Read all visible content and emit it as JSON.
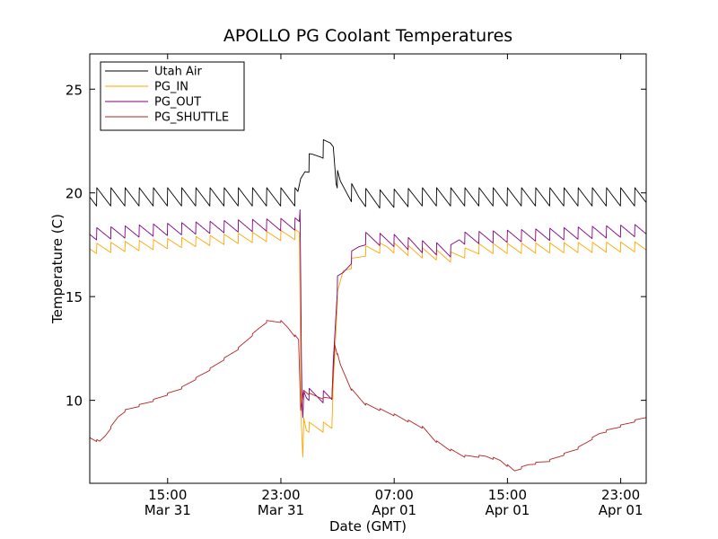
{
  "chart_data": {
    "type": "line",
    "title": "APOLLO PG Coolant Temperatures",
    "xlabel": "Date (GMT)",
    "ylabel": "Temperature (C)",
    "xlim": [
      9.5,
      48.8
    ],
    "ylim": [
      6.0,
      26.7
    ],
    "yticks": [
      10,
      15,
      20,
      25
    ],
    "xticks": [
      {
        "x": 15,
        "line1": "15:00",
        "line2": "Mar 31"
      },
      {
        "x": 23,
        "line1": "23:00",
        "line2": "Mar 31"
      },
      {
        "x": 31,
        "line1": "07:00",
        "line2": "Apr 01"
      },
      {
        "x": 39,
        "line1": "15:00",
        "line2": "Apr 01"
      },
      {
        "x": 47,
        "line1": "23:00",
        "line2": "Apr 01"
      }
    ],
    "x_unit": "hours since 2013-03-31 00:00 GMT (axis shown as Date)",
    "legend_position": "upper-left",
    "series": [
      {
        "name": "Utah Air",
        "color": "#000000",
        "oscillation": {
          "period": 1.0,
          "amplitude": 0.45
        },
        "points": [
          [
            9.5,
            19.8
          ],
          [
            24.2,
            19.8
          ],
          [
            24.4,
            20.6
          ],
          [
            24.7,
            21.2
          ],
          [
            25.2,
            21.6
          ],
          [
            25.8,
            22.0
          ],
          [
            26.5,
            22.4
          ],
          [
            26.7,
            22.4
          ],
          [
            26.9,
            20.8
          ],
          [
            27.2,
            20.3
          ],
          [
            28.0,
            20.0
          ],
          [
            28.5,
            19.8
          ],
          [
            30.0,
            19.7
          ],
          [
            33.0,
            19.8
          ],
          [
            48.8,
            19.8
          ]
        ]
      },
      {
        "name": "PG_IN",
        "color": "#ffa500",
        "oscillation": {
          "period": 1.0,
          "amplitude": 0.25
        },
        "points": [
          [
            9.5,
            17.3
          ],
          [
            14.0,
            17.5
          ],
          [
            20.0,
            17.8
          ],
          [
            24.3,
            18.0
          ],
          [
            24.35,
            14.8
          ],
          [
            24.4,
            11.4
          ],
          [
            24.45,
            8.8
          ],
          [
            24.5,
            8.0
          ],
          [
            24.55,
            7.3
          ],
          [
            24.62,
            9.2
          ],
          [
            24.8,
            8.7
          ],
          [
            26.6,
            8.7
          ],
          [
            26.7,
            11.0
          ],
          [
            27.0,
            15.0
          ],
          [
            27.4,
            16.2
          ],
          [
            28.0,
            16.6
          ],
          [
            29.0,
            17.2
          ],
          [
            30.5,
            17.4
          ],
          [
            33.0,
            17.1
          ],
          [
            35.0,
            16.9
          ],
          [
            37.0,
            17.3
          ],
          [
            48.8,
            17.4
          ]
        ]
      },
      {
        "name": "PG_OUT",
        "color": "#800080",
        "oscillation": {
          "period": 1.0,
          "amplitude": 0.3
        },
        "points": [
          [
            9.5,
            18.0
          ],
          [
            14.0,
            18.2
          ],
          [
            20.0,
            18.4
          ],
          [
            24.3,
            18.5
          ],
          [
            24.35,
            19.1
          ],
          [
            24.4,
            15.8
          ],
          [
            24.45,
            12.0
          ],
          [
            24.5,
            9.8
          ],
          [
            24.55,
            9.2
          ],
          [
            24.62,
            10.5
          ],
          [
            24.8,
            10.3
          ],
          [
            26.6,
            10.1
          ],
          [
            26.7,
            12.0
          ],
          [
            27.0,
            15.7
          ],
          [
            27.4,
            16.1
          ],
          [
            28.0,
            16.9
          ],
          [
            28.5,
            17.4
          ],
          [
            29.0,
            17.8
          ],
          [
            31.0,
            17.7
          ],
          [
            33.0,
            17.4
          ],
          [
            35.0,
            17.2
          ],
          [
            35.6,
            17.8
          ],
          [
            48.8,
            18.2
          ]
        ]
      },
      {
        "name": "PG_SHUTTLE",
        "color": "#b22222",
        "oscillation": {
          "period": 1.0,
          "amplitude": 0.05
        },
        "points": [
          [
            9.5,
            8.2
          ],
          [
            10.2,
            8.0
          ],
          [
            10.6,
            8.3
          ],
          [
            11.0,
            8.7
          ],
          [
            11.5,
            9.2
          ],
          [
            12.0,
            9.5
          ],
          [
            14.0,
            10.0
          ],
          [
            16.0,
            10.6
          ],
          [
            18.0,
            11.5
          ],
          [
            20.0,
            12.5
          ],
          [
            21.5,
            13.5
          ],
          [
            22.0,
            13.8
          ],
          [
            23.0,
            13.8
          ],
          [
            23.5,
            13.5
          ],
          [
            24.0,
            13.1
          ],
          [
            24.25,
            12.9
          ],
          [
            24.4,
            9.5
          ],
          [
            24.6,
            10.5
          ],
          [
            25.0,
            10.3
          ],
          [
            26.0,
            10.1
          ],
          [
            26.6,
            10.1
          ],
          [
            26.8,
            12.7
          ],
          [
            27.2,
            11.7
          ],
          [
            28.0,
            10.5
          ],
          [
            29.0,
            9.8
          ],
          [
            31.0,
            9.3
          ],
          [
            33.0,
            8.7
          ],
          [
            34.0,
            8.0
          ],
          [
            35.0,
            7.6
          ],
          [
            36.0,
            7.3
          ],
          [
            37.5,
            7.3
          ],
          [
            38.5,
            7.1
          ],
          [
            39.5,
            6.6
          ],
          [
            40.5,
            6.9
          ],
          [
            42.0,
            7.1
          ],
          [
            44.0,
            7.7
          ],
          [
            45.5,
            8.4
          ],
          [
            48.8,
            9.2
          ]
        ]
      }
    ]
  }
}
